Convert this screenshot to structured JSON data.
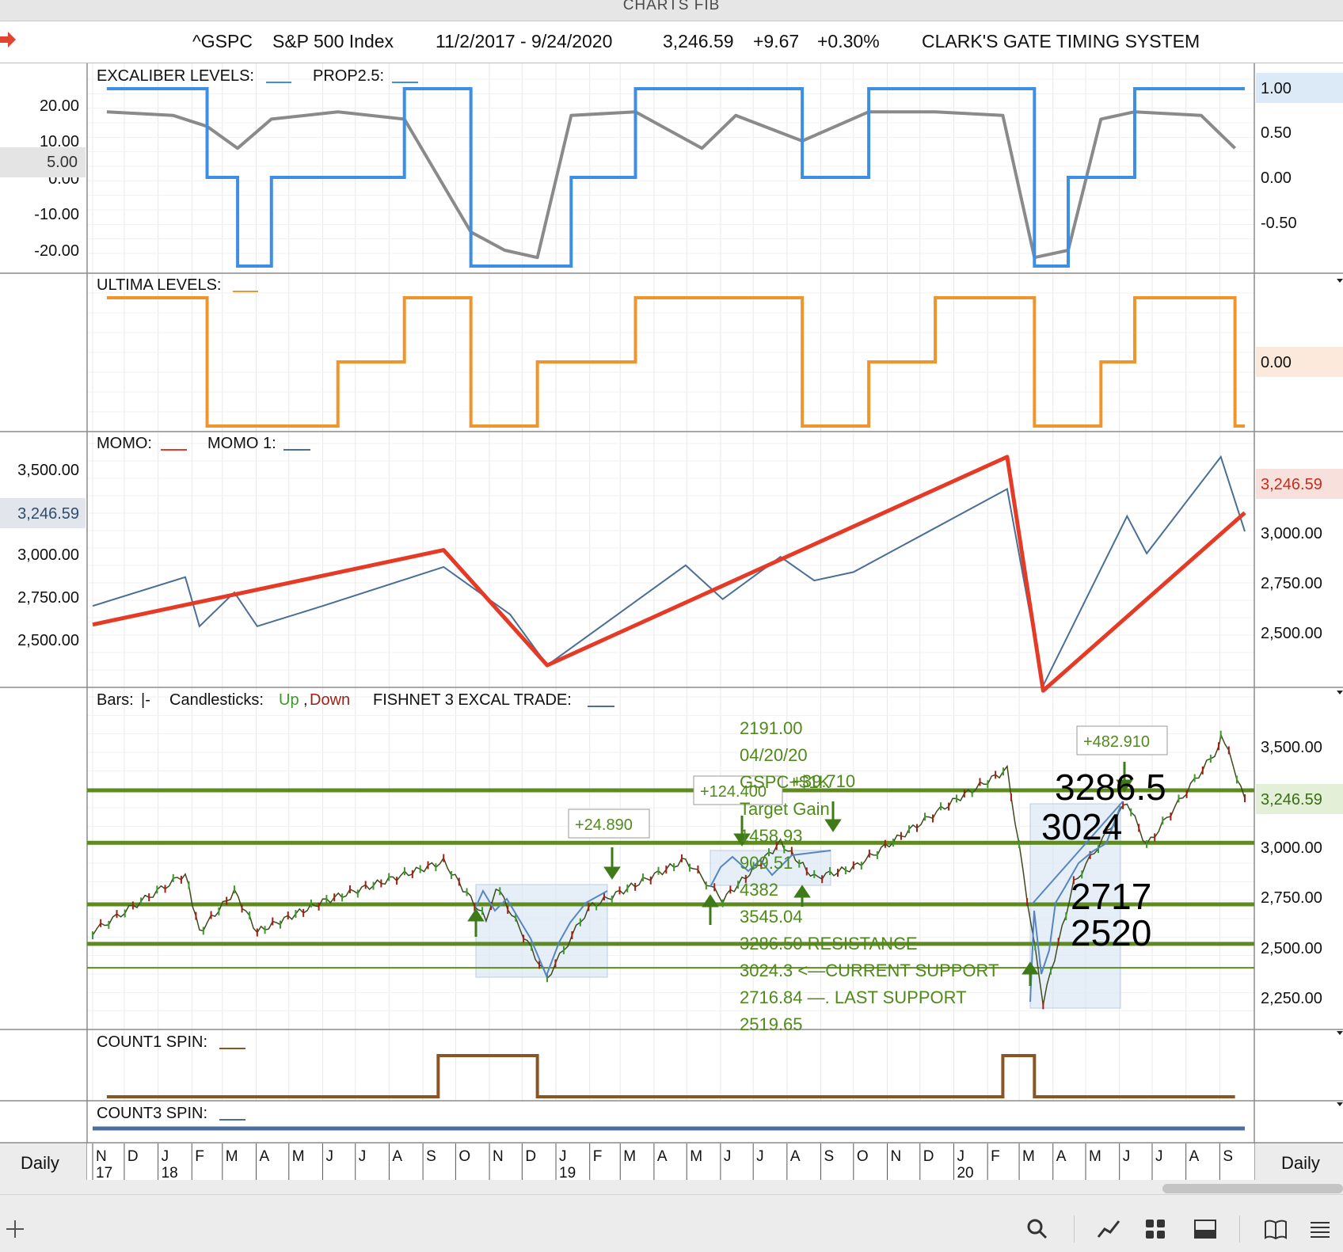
{
  "window": {
    "title": "CHARTS FIB"
  },
  "header": {
    "symbol": "^GSPC",
    "name": "S&P 500 Index",
    "date_range": "11/2/2017 - 9/24/2020",
    "last": "3,246.59",
    "change": "+9.67",
    "pct_change": "+0.30%",
    "system": "CLARK'S GATE TIMING SYSTEM"
  },
  "panels": {
    "excaliber": {
      "legend1": "EXCALIBER LEVELS:",
      "legend2": "PROP2.5:",
      "left_ticks": [
        "20.00",
        "10.00",
        "0.00",
        "-10.00",
        "-20.00"
      ],
      "left_highlight": "5.00",
      "right_ticks": [
        "0.50",
        "0.00",
        "-0.50"
      ],
      "right_highlight": "1.00"
    },
    "ultima": {
      "legend": "ULTIMA LEVELS:",
      "right_highlight": "0.00"
    },
    "momo": {
      "legend1": "MOMO:",
      "legend2": "MOMO 1:",
      "left_ticks": [
        "3,500.00",
        "3,000.00",
        "2,750.00",
        "2,500.00"
      ],
      "left_highlight": "3,246.59",
      "right_ticks": [
        "3,000.00",
        "2,750.00",
        "2,500.00"
      ],
      "right_highlight": "3,246.59"
    },
    "price": {
      "legend_bars": "Bars:",
      "legend_bars_sym": "|-",
      "legend_candles": "Candlesticks:",
      "legend_up": "Up",
      "legend_comma": ",",
      "legend_down": "Down",
      "legend_fishnet": "FISHNET 3 EXCAL TRADE:",
      "right_ticks": [
        "3,500.00",
        "3,000.00",
        "2,750.00",
        "2,500.00",
        "2,250.00"
      ],
      "right_highlight": "3,246.59",
      "trade_labels": [
        "+24.890",
        "+124.400",
        "+482.910"
      ],
      "annotations": [
        "2191.00",
        "04/20/20",
        "GSPC+$1K",
        "+39.710",
        "Target Gain",
        "1458.93",
        "909.51",
        "4382",
        "3545.04",
        "3286.50 RESISTANCE",
        "3024.3 <—CURRENT SUPPORT",
        "2716.84 —. LAST SUPPORT",
        "2519.65"
      ],
      "big_labels": [
        "3286.5",
        "3024",
        "2717",
        "2520"
      ]
    },
    "count1": {
      "legend": "COUNT1 SPIN:"
    },
    "count3": {
      "legend": "COUNT3 SPIN:"
    }
  },
  "time_axis": {
    "left_label": "Daily",
    "right_label": "Daily",
    "months": [
      "N",
      "D",
      "J",
      "F",
      "M",
      "A",
      "M",
      "J",
      "J",
      "A",
      "S",
      "O",
      "N",
      "D",
      "J",
      "F",
      "M",
      "A",
      "M",
      "J",
      "J",
      "A",
      "S",
      "O",
      "N",
      "D",
      "J",
      "F",
      "M",
      "A",
      "M",
      "J",
      "J",
      "A",
      "S"
    ],
    "years": [
      "17",
      "18",
      "19",
      "20"
    ]
  },
  "colors": {
    "excaliber": "#8a8a8a",
    "prop": "#3d8fe6",
    "ultima": "#f0952c",
    "momo": "#e53a25",
    "momo1": "#4a6f96",
    "levels": "#5e8a1f",
    "annot": "#4f8a1b",
    "spin": "#8a5522",
    "spin3": "#4b6e9c"
  },
  "chart_data": [
    {
      "type": "line",
      "title": "EXCALIBER LEVELS / PROP2.5",
      "x": [
        "2017-11",
        "2018-01",
        "2018-02",
        "2018-03",
        "2018-04",
        "2018-06",
        "2018-08",
        "2018-10",
        "2018-11",
        "2018-12",
        "2019-01",
        "2019-03",
        "2019-05",
        "2019-06",
        "2019-08",
        "2019-10",
        "2019-12",
        "2020-02",
        "2020-03",
        "2020-04",
        "2020-05",
        "2020-06",
        "2020-08",
        "2020-09"
      ],
      "series": [
        {
          "name": "EXCALIBER LEVELS",
          "values": [
            18,
            17,
            14,
            8,
            16,
            18,
            16,
            -15,
            -20,
            -22,
            17,
            18,
            8,
            17,
            10,
            18,
            18,
            17,
            -22,
            -20,
            16,
            18,
            17,
            8
          ]
        },
        {
          "name": "PROP2.5",
          "values": [
            1,
            1,
            0,
            -1,
            0,
            0,
            1,
            -1,
            -1,
            -1,
            0,
            1,
            1,
            1,
            0,
            1,
            1,
            1,
            -1,
            0,
            0,
            1,
            1,
            1
          ]
        }
      ]
    },
    {
      "type": "line",
      "title": "ULTIMA LEVELS",
      "x": [
        "2017-11",
        "2018-01",
        "2018-02",
        "2018-03",
        "2018-06",
        "2018-08",
        "2018-10",
        "2018-12",
        "2019-03",
        "2019-04",
        "2019-06",
        "2019-08",
        "2019-10",
        "2019-12",
        "2020-01",
        "2020-03",
        "2020-05",
        "2020-06",
        "2020-08",
        "2020-09"
      ],
      "values": [
        1,
        1,
        -1,
        -1,
        0,
        1,
        -1,
        0,
        1,
        1,
        1,
        -1,
        0,
        1,
        1,
        -1,
        0,
        1,
        1,
        -1
      ]
    },
    {
      "type": "line",
      "title": "MOMO / MOMO 1",
      "series": [
        {
          "name": "MOMO",
          "x": [
            "2017-11-02",
            "2018-09-20",
            "2018-12-24",
            "2020-02-19",
            "2020-03-23",
            "2020-09-24"
          ],
          "values": [
            2590,
            3030,
            2350,
            3580,
            2200,
            3250
          ]
        },
        {
          "name": "MOMO 1",
          "x": [
            "2017-11-02",
            "2018-01-26",
            "2018-02-08",
            "2018-03-12",
            "2018-04-02",
            "2018-06-01",
            "2018-09-20",
            "2018-11-20",
            "2018-12-24",
            "2019-04-30",
            "2019-06-03",
            "2019-07-26",
            "2019-08-26",
            "2019-10-01",
            "2020-02-19",
            "2020-03-23",
            "2020-06-08",
            "2020-06-26",
            "2020-09-02",
            "2020-09-24"
          ],
          "values": [
            2700,
            2870,
            2580,
            2780,
            2580,
            2700,
            2930,
            2650,
            2350,
            2940,
            2740,
            2990,
            2850,
            2900,
            3390,
            2230,
            3230,
            3010,
            3580,
            3140
          ]
        }
      ]
    },
    {
      "type": "line",
      "title": "S&P 500 Index",
      "x": [
        "2017-11-02",
        "2018-01-26",
        "2018-02-08",
        "2018-03-12",
        "2018-04-02",
        "2018-06-01",
        "2018-09-20",
        "2018-10-29",
        "2018-11-07",
        "2018-12-24",
        "2019-01-31",
        "2019-04-30",
        "2019-06-03",
        "2019-07-26",
        "2019-08-26",
        "2019-10-01",
        "2019-12-31",
        "2020-02-19",
        "2020-03-23",
        "2020-04-20",
        "2020-06-08",
        "2020-06-26",
        "2020-08-31",
        "2020-09-02",
        "2020-09-24"
      ],
      "values": [
        2580,
        2870,
        2580,
        2780,
        2580,
        2730,
        2930,
        2640,
        2810,
        2350,
        2700,
        2940,
        2740,
        3025,
        2850,
        2900,
        3230,
        3390,
        2230,
        2820,
        3230,
        3010,
        3500,
        3580,
        3246.59
      ],
      "ylim": [
        2200,
        3620
      ],
      "hlines": [
        3286.5,
        3024.3,
        2716.84,
        2519.65,
        2400
      ]
    },
    {
      "type": "line",
      "title": "COUNT1 SPIN",
      "x": [
        "2017-11",
        "2018-09",
        "2018-12",
        "2020-02",
        "2020-03",
        "2020-09"
      ],
      "values": [
        0,
        1,
        0,
        1,
        0,
        0
      ]
    }
  ]
}
